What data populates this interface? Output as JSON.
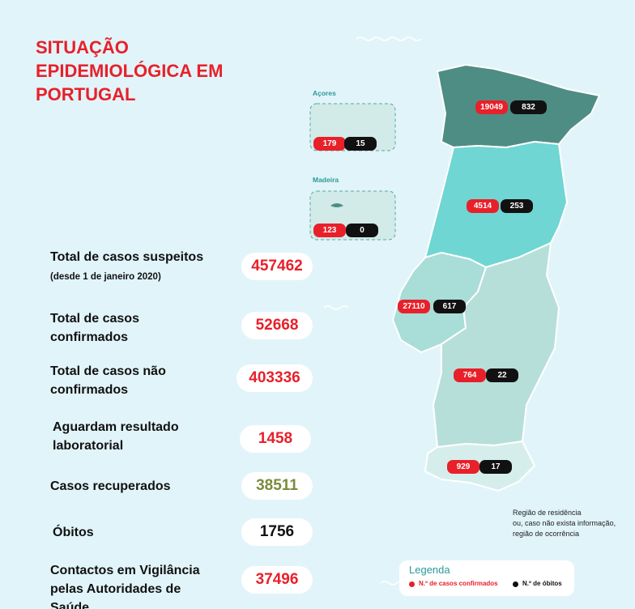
{
  "header": {
    "title_lines": [
      "SITUAÇÃO",
      "EPIDEMIOLÓGICA EM",
      "PORTUGAL"
    ]
  },
  "stats": [
    {
      "label": "Total de casos suspeitos",
      "note": "(desde 1 de janeiro 2020)",
      "value": 457462
    },
    {
      "label": "Total de casos confirmados",
      "value": 52668
    },
    {
      "label": "Total de casos não confirmados",
      "value": 403336
    },
    {
      "label": "Aguardam resultado laboratorial",
      "value": 1458
    },
    {
      "label": "Casos recuperados",
      "value": 38511
    },
    {
      "label": "Óbitos",
      "value": 1756
    },
    {
      "label": "Contactos em Vigilância pelas Autoridades de Saúde",
      "value": 37496
    }
  ],
  "islands": [
    {
      "name": "Açores",
      "confirmed": 179,
      "deaths": 15
    },
    {
      "name": "Madeira",
      "confirmed": 123,
      "deaths": 0
    }
  ],
  "regions": [
    {
      "confirmed": 19049,
      "deaths": 832
    },
    {
      "confirmed": 4514,
      "deaths": 253
    },
    {
      "confirmed": 27110,
      "deaths": 617
    },
    {
      "confirmed": 764,
      "deaths": 22
    },
    {
      "confirmed": 929,
      "deaths": 17
    }
  ],
  "region_note": [
    "Região de residência",
    "ou, caso não exista informação,",
    "região de ocorrência"
  ],
  "legend": {
    "title": "Legenda",
    "confirmed": "N.º de casos confirmados",
    "deaths": "N.º de óbitos"
  }
}
